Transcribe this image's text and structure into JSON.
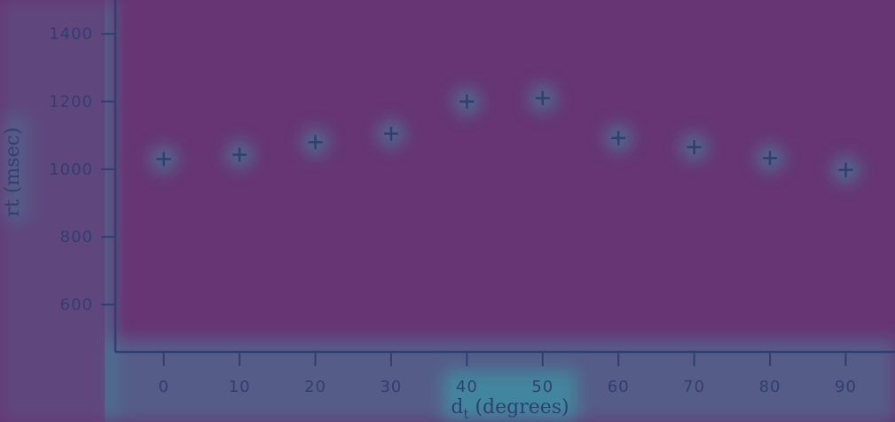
{
  "chart_data": {
    "type": "scatter",
    "title": "",
    "xlabel_main": "d",
    "xlabel_sub": "t",
    "xlabel_rest": " (degrees)",
    "ylabel": "rt (msec)",
    "x": [
      0,
      10,
      20,
      30,
      40,
      50,
      60,
      70,
      80,
      90
    ],
    "y": [
      1030,
      1043,
      1080,
      1105,
      1200,
      1210,
      1092,
      1065,
      1033,
      998
    ],
    "xticks": [
      "0",
      "10",
      "20",
      "30",
      "40",
      "50",
      "60",
      "70",
      "80",
      "90"
    ],
    "yticks": [
      "600",
      "800",
      "1000",
      "1200",
      "1400"
    ],
    "ytick_values": [
      600,
      800,
      1000,
      1200,
      1400
    ],
    "xlim": [
      -6.4,
      96.5
    ],
    "ylim": [
      460,
      1500
    ],
    "marker": "plus",
    "colors": {
      "background": "#673574",
      "axis": "#2f3f70",
      "marker": "#2f3f70",
      "glow": "#35a7b0"
    }
  }
}
